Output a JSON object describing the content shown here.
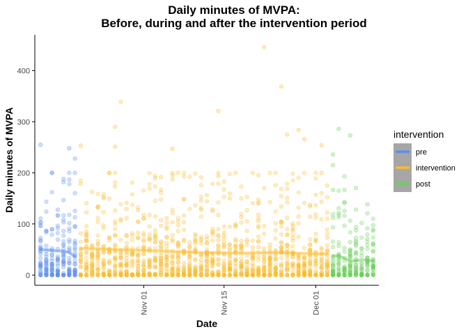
{
  "chart_data": {
    "type": "scatter",
    "title_line1": "Daily minutes of MVPA:",
    "title_line2": "Before, during and after the intervention period",
    "xlabel": "Date",
    "ylabel": "Daily minutes of MVPA",
    "x_range": [
      "2019-10-13",
      "2019-12-12"
    ],
    "ylim": [
      -20,
      470
    ],
    "y_ticks": [
      0,
      100,
      200,
      300,
      400
    ],
    "x_ticks": [
      {
        "date": "2019-11-01",
        "label": "Nov 01"
      },
      {
        "date": "2019-11-15",
        "label": "Nov 15"
      },
      {
        "date": "2019-12-01",
        "label": "Dec 01"
      }
    ],
    "grid": false,
    "legend": {
      "title": "intervention",
      "position": "right"
    },
    "series": [
      {
        "name": "pre",
        "color": "#5B8DEF",
        "start": "2019-10-14",
        "end": "2019-10-20",
        "participants_per_day": 30,
        "typical_daily_minutes": 40,
        "outliers": [
          {
            "x": "2019-10-14",
            "y": 255
          },
          {
            "x": "2019-10-19",
            "y": 248
          },
          {
            "x": "2019-10-20",
            "y": 228
          },
          {
            "x": "2019-10-18",
            "y": 182
          }
        ],
        "smooth": [
          {
            "x": "2019-10-14",
            "y": 50
          },
          {
            "x": "2019-10-15",
            "y": 50
          },
          {
            "x": "2019-10-16",
            "y": 48
          },
          {
            "x": "2019-10-17",
            "y": 47
          },
          {
            "x": "2019-10-18",
            "y": 47
          },
          {
            "x": "2019-10-19",
            "y": 44
          },
          {
            "x": "2019-10-20",
            "y": 36
          }
        ]
      },
      {
        "name": "intervention",
        "color": "#FBBC2C",
        "start": "2019-10-21",
        "end": "2019-12-03",
        "participants_per_day": 30,
        "typical_daily_minutes": 40,
        "outliers": [
          {
            "x": "2019-10-21",
            "y": 253
          },
          {
            "x": "2019-10-27",
            "y": 290
          },
          {
            "x": "2019-10-28",
            "y": 339
          },
          {
            "x": "2019-10-27",
            "y": 251
          },
          {
            "x": "2019-11-06",
            "y": 247
          },
          {
            "x": "2019-11-14",
            "y": 321
          },
          {
            "x": "2019-11-22",
            "y": 446
          },
          {
            "x": "2019-11-25",
            "y": 369
          },
          {
            "x": "2019-11-26",
            "y": 275
          },
          {
            "x": "2019-11-28",
            "y": 284
          },
          {
            "x": "2019-12-02",
            "y": 254
          },
          {
            "x": "2019-11-29",
            "y": 266
          }
        ],
        "smooth": [
          {
            "x": "2019-10-21",
            "y": 52
          },
          {
            "x": "2019-10-28",
            "y": 50
          },
          {
            "x": "2019-11-04",
            "y": 47
          },
          {
            "x": "2019-11-11",
            "y": 44
          },
          {
            "x": "2019-11-18",
            "y": 43
          },
          {
            "x": "2019-11-25",
            "y": 44
          },
          {
            "x": "2019-12-03",
            "y": 41
          }
        ]
      },
      {
        "name": "post",
        "color": "#6CCF5B",
        "start": "2019-12-04",
        "end": "2019-12-11",
        "participants_per_day": 30,
        "typical_daily_minutes": 35,
        "outliers": [
          {
            "x": "2019-12-05",
            "y": 286
          },
          {
            "x": "2019-12-07",
            "y": 273
          },
          {
            "x": "2019-12-04",
            "y": 215
          },
          {
            "x": "2019-12-04",
            "y": 236
          }
        ],
        "smooth": [
          {
            "x": "2019-12-04",
            "y": 38
          },
          {
            "x": "2019-12-05",
            "y": 37
          },
          {
            "x": "2019-12-06",
            "y": 33
          },
          {
            "x": "2019-12-07",
            "y": 27
          },
          {
            "x": "2019-12-08",
            "y": 28
          },
          {
            "x": "2019-12-09",
            "y": 30
          },
          {
            "x": "2019-12-10",
            "y": 29
          },
          {
            "x": "2019-12-11",
            "y": 28
          }
        ]
      }
    ]
  }
}
